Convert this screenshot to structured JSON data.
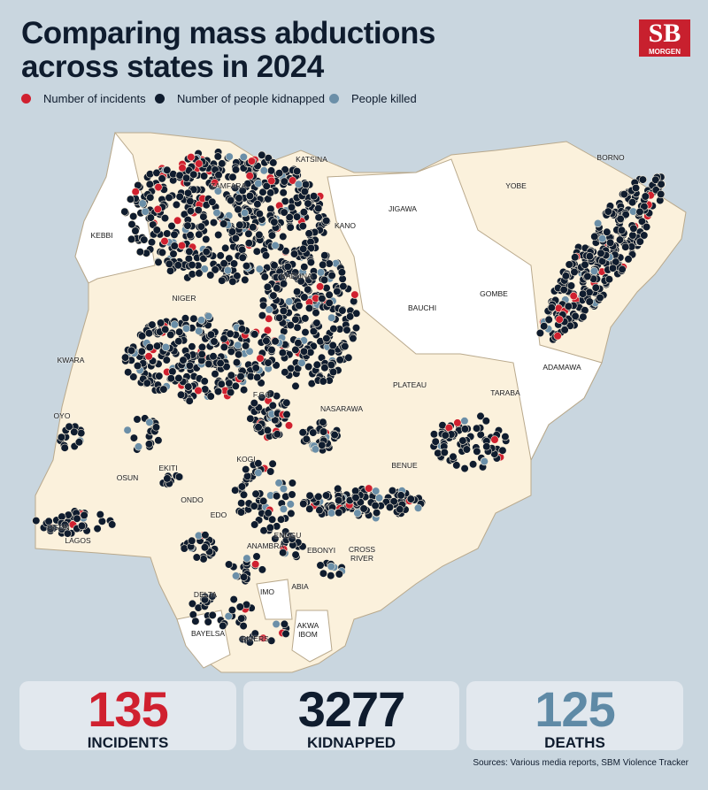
{
  "header": {
    "title": [
      "Comparing mass abductions",
      "across states in 2024"
    ],
    "logo": {
      "mark": "SB",
      "name": "MORGEN"
    }
  },
  "legend": [
    {
      "label": "Number of incidents",
      "color": "#d0202f"
    },
    {
      "label": "Number of people kidnapped",
      "color": "#0f1c2e"
    },
    {
      "label": "People killed",
      "color": "#6b8fa8"
    }
  ],
  "map": {
    "states": [
      "KATSINA",
      "BORNO",
      "ZAMFARA",
      "JIGAWA",
      "YOBE",
      "KANO",
      "KEBBI",
      "KADUNA",
      "BAUCHI",
      "GOMBE",
      "NIGER",
      "ADAMAWA",
      "KWARA",
      "PLATEAU",
      "F.C.T",
      "TARABA",
      "NASARAWA",
      "OYO",
      "KOGI",
      "BENUE",
      "EKITI",
      "OSUN",
      "ONDO",
      "EDO",
      "OGUN",
      "LAGOS",
      "ENUGU",
      "ANAMBRA",
      "EBONYI",
      "CROSS RIVER",
      "DELTA",
      "IMO",
      "ABIA",
      "BAYELSA",
      "RIVERS",
      "AKWA IBOM"
    ]
  },
  "stats": [
    {
      "value": 135,
      "label": "INCIDENTS",
      "color": "#d0202f"
    },
    {
      "value": 3277,
      "label": "KIDNAPPED",
      "color": "#0f1c2e"
    },
    {
      "value": 125,
      "label": "DEATHS",
      "color": "#5f8aa6"
    }
  ],
  "source": "Sources: Various media reports, SBM Violence Tracker"
}
